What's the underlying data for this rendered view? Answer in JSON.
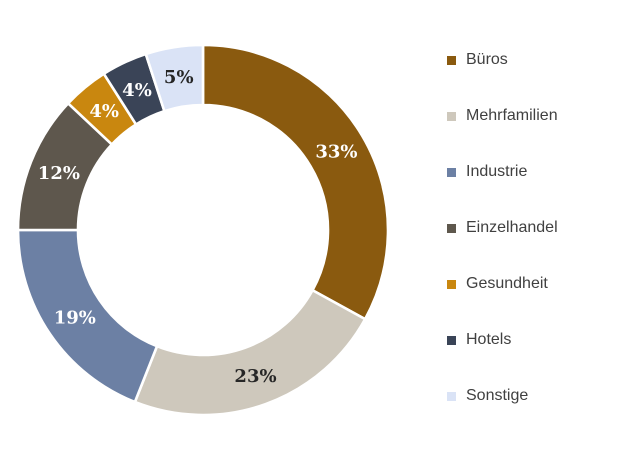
{
  "background_color": "#ffffff",
  "chart_data": {
    "type": "pie",
    "subtype": "donut",
    "title": "",
    "legend_position": "right",
    "direction": "clockwise",
    "start_at": "top",
    "categories": [
      "Büros",
      "Mehrfamilien",
      "Industrie",
      "Einzelhandel",
      "Gesundheit",
      "Hotels",
      "Sonstige"
    ],
    "values": [
      33,
      23,
      19,
      12,
      4,
      4,
      5
    ],
    "unit": "%",
    "data_labels": [
      "33%",
      "23%",
      "19%",
      "12%",
      "4%",
      "4%",
      "5%"
    ],
    "colors": [
      "#8A5A0F",
      "#CEC8BC",
      "#6C80A4",
      "#5E574D",
      "#C9870F",
      "#3A4457",
      "#DAE3F6"
    ],
    "data_label_colors": [
      "#ffffff",
      "#262626",
      "#ffffff",
      "#ffffff",
      "#ffffff",
      "#ffffff",
      "#262626"
    ],
    "slice_gap_color": "#ffffff",
    "legend_text_color": "#404040"
  }
}
